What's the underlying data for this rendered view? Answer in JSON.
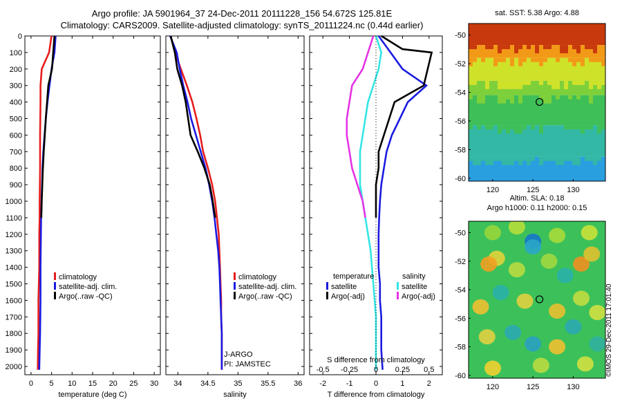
{
  "header": {
    "line1": "Argo profile: JA 5901964_37 24-Dec-2011 20111228_156 54.672S 125.81E",
    "line2": "Climatology: CARS2009. Satellite-adjusted climatology: synTS_20111224.nc (0.44d earlier)"
  },
  "colors": {
    "climatology": "#e51c1c",
    "satellite": "#1a1ae0",
    "argo": "#000000",
    "sal_satellite": "#33e5e5",
    "sal_argo": "#e533e5"
  },
  "depth_axis": {
    "ticks": [
      0,
      100,
      200,
      300,
      400,
      500,
      600,
      700,
      800,
      900,
      1000,
      1100,
      1200,
      1300,
      1400,
      1500,
      1600,
      1700,
      1800,
      1900,
      2000
    ],
    "range": [
      0,
      2050
    ]
  },
  "chart_data": [
    {
      "id": "temperature",
      "type": "line",
      "xlabel": "temperature (deg C)",
      "xlim": [
        -1.5,
        31.5
      ],
      "xticks": [
        0,
        5,
        10,
        15,
        20,
        25,
        30
      ],
      "ylim": [
        0,
        2050
      ],
      "legend": [
        "climatology",
        "satellite-adj. clim.",
        "Argo(..raw -QC)"
      ],
      "series": [
        {
          "name": "climatology",
          "color": "#e51c1c",
          "x": [
            5.0,
            4.4,
            2.6,
            2.3,
            2.3,
            2.25,
            2.2,
            2.2,
            2.2,
            2.15,
            2.1,
            2.1,
            2.0,
            2.0,
            2.0,
            1.9,
            1.8,
            1.8,
            1.8,
            1.7,
            1.65
          ],
          "y": [
            0,
            100,
            200,
            300,
            400,
            500,
            600,
            700,
            800,
            900,
            1000,
            1100,
            1200,
            1300,
            1400,
            1500,
            1600,
            1700,
            1800,
            1900,
            2020
          ]
        },
        {
          "name": "satellite-adj. clim.",
          "color": "#1a1ae0",
          "x": [
            6.0,
            5.7,
            5.0,
            4.5,
            4.0,
            3.6,
            3.3,
            3.0,
            2.8,
            2.7,
            2.55,
            2.45,
            2.4,
            2.35,
            2.3,
            2.3,
            2.3,
            2.25,
            2.2,
            2.1,
            2.0
          ],
          "y": [
            0,
            100,
            200,
            300,
            400,
            500,
            600,
            700,
            800,
            900,
            1000,
            1100,
            1200,
            1300,
            1400,
            1500,
            1600,
            1700,
            1800,
            1900,
            2020
          ]
        },
        {
          "name": "Argo(..raw -QC)",
          "color": "#000000",
          "x": [
            5.7,
            5.4,
            5.1,
            4.2,
            3.9,
            3.6,
            3.35,
            3.1,
            2.9,
            2.75,
            2.6,
            2.5
          ],
          "y": [
            0,
            100,
            200,
            300,
            400,
            500,
            600,
            700,
            800,
            900,
            1000,
            1100
          ]
        }
      ]
    },
    {
      "id": "salinity",
      "type": "line",
      "xlabel": "salinity",
      "xlim": [
        33.8,
        36.1
      ],
      "xticks": [
        34,
        34.5,
        35,
        35.5,
        36
      ],
      "xtick_labels": [
        "34",
        "34.5",
        "35",
        "35.5",
        "36"
      ],
      "ylim": [
        0,
        2050
      ],
      "legend": [
        "climatology",
        "satellite-adj. clim.",
        "Argo(..raw -QC)"
      ],
      "annotation": [
        "J-ARGO",
        "PI: JAMSTEC"
      ],
      "series": [
        {
          "name": "climatology",
          "color": "#e51c1c",
          "x": [
            33.88,
            33.95,
            34.05,
            34.15,
            34.24,
            34.31,
            34.37,
            34.42,
            34.5,
            34.57,
            34.62,
            34.65,
            34.68,
            34.69,
            34.7,
            34.71,
            34.72,
            34.72,
            34.73,
            34.73,
            34.73
          ],
          "y": [
            0,
            100,
            200,
            300,
            400,
            500,
            600,
            700,
            800,
            900,
            1000,
            1100,
            1200,
            1300,
            1400,
            1500,
            1600,
            1700,
            1800,
            1900,
            2020
          ]
        },
        {
          "name": "satellite-adj. clim.",
          "color": "#1a1ae0",
          "x": [
            33.87,
            33.98,
            34.03,
            34.09,
            34.16,
            34.22,
            34.3,
            34.38,
            34.46,
            34.52,
            34.57,
            34.61,
            34.64,
            34.67,
            34.69,
            34.7,
            34.71,
            34.72,
            34.73,
            34.73,
            34.73
          ],
          "y": [
            0,
            100,
            200,
            300,
            400,
            500,
            600,
            700,
            800,
            900,
            1000,
            1100,
            1200,
            1300,
            1400,
            1500,
            1600,
            1700,
            1800,
            1900,
            2020
          ]
        },
        {
          "name": "Argo(..raw -QC)",
          "color": "#000000",
          "x": [
            33.88,
            33.95,
            33.99,
            34.07,
            34.13,
            34.17,
            34.21,
            34.33,
            34.44,
            34.53,
            34.58,
            34.62
          ],
          "y": [
            0,
            100,
            200,
            300,
            400,
            500,
            600,
            700,
            800,
            900,
            1000,
            1100
          ]
        }
      ]
    },
    {
      "id": "difference",
      "type": "line",
      "xlabel": "T difference from climatology",
      "xlim": [
        -2.5,
        2.5
      ],
      "xticks": [
        -2,
        -1,
        0,
        1,
        2
      ],
      "top_xlabel": "S difference from climatology",
      "top_xticks": [
        "-0.5",
        "-0.25",
        "0",
        "0.25",
        "0.5"
      ],
      "ylim": [
        0,
        2050
      ],
      "legend_left_title": "temperature",
      "legend_right_title": "salinity",
      "legend": [
        "satellite",
        "Argo(-adj)",
        "satellite",
        "Argo(-adj)"
      ],
      "series": [
        {
          "name": "satellite",
          "color": "#1a1ae0",
          "x": [
            0.1,
            0.55,
            1.0,
            1.9,
            1.2,
            0.9,
            0.6,
            0.4,
            0.3,
            0.2,
            0.15,
            0.12,
            0.1,
            0.1,
            0.1,
            0.15,
            0.15,
            0.2,
            0.2,
            0.2,
            0.25
          ],
          "y": [
            0,
            100,
            200,
            300,
            400,
            500,
            600,
            700,
            800,
            900,
            1000,
            1100,
            1200,
            1300,
            1400,
            1500,
            1600,
            1700,
            1800,
            1900,
            2020
          ]
        },
        {
          "name": "Argo(-adj)",
          "color": "#000000",
          "x": [
            0.2,
            1.0,
            2.1,
            1.8,
            0.7,
            0.5,
            0.3,
            0.1,
            0.1,
            0.0,
            0.0,
            0.0
          ],
          "y": [
            0,
            80,
            100,
            300,
            400,
            500,
            600,
            700,
            800,
            900,
            1000,
            1100
          ]
        },
        {
          "name": "satellite",
          "color": "#33e5e5",
          "x": [
            0.0,
            0.2,
            0.1,
            -0.1,
            -0.3,
            -0.4,
            -0.5,
            -0.6,
            -0.6,
            -0.6,
            -0.5,
            -0.4,
            -0.3,
            -0.2,
            -0.15,
            -0.1,
            -0.05,
            0.0,
            0.0,
            0.0,
            0.0
          ],
          "y": [
            0,
            100,
            200,
            300,
            400,
            500,
            600,
            700,
            800,
            900,
            1000,
            1100,
            1200,
            1300,
            1400,
            1500,
            1600,
            1700,
            1800,
            1900,
            2020
          ]
        },
        {
          "name": "Argo(-adj)",
          "color": "#e533e5",
          "x": [
            -0.1,
            -0.3,
            -0.5,
            -0.9,
            -1.0,
            -1.1,
            -1.1,
            -1.0,
            -0.9,
            -0.7,
            -0.5,
            -0.4
          ],
          "y": [
            0,
            100,
            200,
            300,
            400,
            500,
            600,
            700,
            800,
            900,
            1000,
            1100
          ]
        }
      ]
    },
    {
      "id": "sst_map",
      "type": "heatmap",
      "title": "sat. SST: 5.38 Argo: 4.88",
      "xticks": [
        120,
        125,
        130
      ],
      "yticks": [
        -50,
        -52,
        -54,
        -56,
        -58,
        -60
      ],
      "xlim": [
        117,
        134
      ],
      "ylim": [
        -60.2,
        -49.2
      ],
      "marker": {
        "lon": 125.81,
        "lat": -54.672
      },
      "bands": [
        {
          "lat": [
            -49.2,
            -50.7
          ],
          "color": "#c8390d"
        },
        {
          "lat": [
            -50.7,
            -51.6
          ],
          "color": "#f29a17"
        },
        {
          "lat": [
            -51.6,
            -53.2
          ],
          "color": "#cfe22a"
        },
        {
          "lat": [
            -53.2,
            -54.2
          ],
          "color": "#7ed03a"
        },
        {
          "lat": [
            -54.2,
            -56.3
          ],
          "color": "#3fbf58"
        },
        {
          "lat": [
            -56.3,
            -58.5
          ],
          "color": "#32b8a4"
        },
        {
          "lat": [
            -58.5,
            -60.2
          ],
          "color": "#2a9fe0"
        }
      ]
    },
    {
      "id": "sla_map",
      "type": "heatmap",
      "title_lines": [
        "Altim. SLA: 0.18",
        "Argo h1000: 0.11 h2000: 0.15"
      ],
      "xticks": [
        120,
        125,
        130
      ],
      "yticks": [
        -50,
        -52,
        -54,
        -56,
        -58,
        -60
      ],
      "xlim": [
        117,
        134
      ],
      "ylim": [
        -60.2,
        -49.2
      ],
      "marker": {
        "lon": 125.81,
        "lat": -54.672
      },
      "base_color": "#3cc15a"
    }
  ],
  "credit": "©IMOS 29-Dec-2011 17:01:40"
}
